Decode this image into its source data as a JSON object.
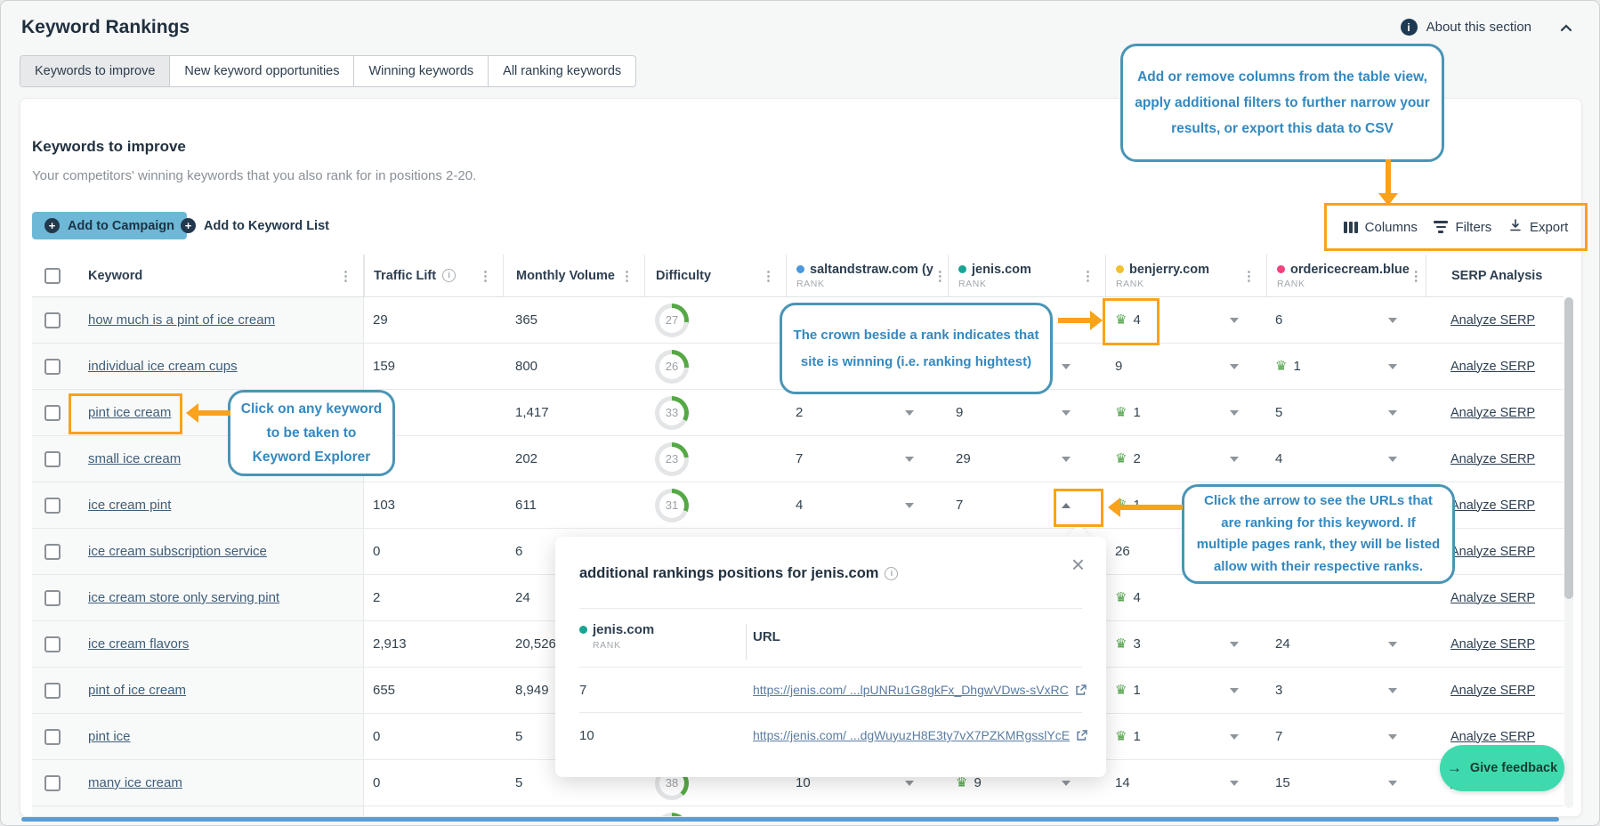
{
  "colors": {
    "accent_orange": "#F9A21B",
    "callout_text": "#3389C0",
    "callout_border": "#4A95B6",
    "green": "#55A945",
    "navy": "#2C3D4F",
    "campaign_btn": "#6DB8D6",
    "feedback_btn": "#3FD9AE"
  },
  "page": {
    "title": "Keyword Rankings"
  },
  "about": {
    "label": "About this section"
  },
  "tabs": [
    {
      "label": "Keywords to improve",
      "active": true
    },
    {
      "label": "New keyword opportunities",
      "active": false
    },
    {
      "label": "Winning keywords",
      "active": false
    },
    {
      "label": "All ranking keywords",
      "active": false
    }
  ],
  "section": {
    "title": "Keywords to improve",
    "subtitle": "Your competitors' winning keywords that you also rank for in positions 2-20."
  },
  "toolbar": {
    "add_to_campaign": "Add to Campaign",
    "add_to_keyword_list": "Add to Keyword List",
    "columns": "Columns",
    "filters": "Filters",
    "export": "Export"
  },
  "table": {
    "headers": {
      "keyword": "Keyword",
      "traffic_lift": "Traffic Lift",
      "monthly_volume": "Monthly Volume",
      "difficulty": "Difficulty",
      "serp": "SERP Analysis",
      "rank_sublabel": "RANK",
      "competitors": [
        {
          "name": "saltandstraw.com (y",
          "dot": "#4A97DD"
        },
        {
          "name": "jenis.com",
          "dot": "#17A493"
        },
        {
          "name": "benjerry.com",
          "dot": "#F2C12E"
        },
        {
          "name": "ordericecream.blue",
          "dot": "#F1437E"
        }
      ]
    },
    "analyze_serp_label": "Analyze SERP",
    "rows": [
      {
        "keyword": "how much is a pint of ice cream",
        "traffic_lift": "29",
        "monthly_volume": "365",
        "difficulty": 27,
        "ranks": [
          null,
          null,
          {
            "v": "4",
            "crown": true,
            "caret": "down"
          },
          {
            "v": "6",
            "caret": "down"
          }
        ]
      },
      {
        "keyword": "individual ice cream cups",
        "traffic_lift": "159",
        "monthly_volume": "800",
        "difficulty": 26,
        "ranks": [
          null,
          {
            "v": "",
            "caret": "down"
          },
          {
            "v": "9",
            "caret": "down"
          },
          {
            "v": "1",
            "crown": true,
            "caret": "down"
          }
        ]
      },
      {
        "keyword": "pint ice cream",
        "traffic_lift": null,
        "monthly_volume": "1,417",
        "difficulty": 33,
        "ranks": [
          {
            "v": "2",
            "caret": "down"
          },
          {
            "v": "9",
            "caret": "down"
          },
          {
            "v": "1",
            "crown": true,
            "caret": "down"
          },
          {
            "v": "5",
            "caret": "down"
          }
        ]
      },
      {
        "keyword": "small ice cream",
        "traffic_lift": null,
        "monthly_volume": "202",
        "difficulty": 23,
        "ranks": [
          {
            "v": "7",
            "caret": "down"
          },
          {
            "v": "29",
            "caret": "down"
          },
          {
            "v": "2",
            "crown": true,
            "caret": "down"
          },
          {
            "v": "4",
            "caret": "down"
          }
        ]
      },
      {
        "keyword": "ice cream pint",
        "traffic_lift": "103",
        "monthly_volume": "611",
        "difficulty": 31,
        "ranks": [
          {
            "v": "4",
            "caret": "down"
          },
          {
            "v": "7",
            "caret": "up"
          },
          {
            "v": "1",
            "crown": true
          },
          null
        ]
      },
      {
        "keyword": "ice cream subscription service",
        "traffic_lift": "0",
        "monthly_volume": "6",
        "difficulty": null,
        "ranks": [
          null,
          null,
          {
            "v": "26"
          },
          null
        ]
      },
      {
        "keyword": "ice cream store only serving pint",
        "traffic_lift": "2",
        "monthly_volume": "24",
        "difficulty": null,
        "ranks": [
          null,
          null,
          {
            "v": "4",
            "crown": true
          },
          null
        ]
      },
      {
        "keyword": "ice cream flavors",
        "traffic_lift": "2,913",
        "monthly_volume": "20,526",
        "difficulty": null,
        "ranks": [
          null,
          null,
          {
            "v": "3",
            "crown": true,
            "caret": "down"
          },
          {
            "v": "24",
            "caret": "down"
          }
        ]
      },
      {
        "keyword": "pint of ice cream",
        "traffic_lift": "655",
        "monthly_volume": "8,949",
        "difficulty": null,
        "ranks": [
          null,
          null,
          {
            "v": "1",
            "crown": true,
            "caret": "down"
          },
          {
            "v": "3",
            "caret": "down"
          }
        ]
      },
      {
        "keyword": "pint ice",
        "traffic_lift": "0",
        "monthly_volume": "5",
        "difficulty": null,
        "ranks": [
          null,
          null,
          {
            "v": "1",
            "crown": true,
            "caret": "down"
          },
          {
            "v": "7",
            "caret": "down"
          }
        ]
      },
      {
        "keyword": "many ice cream",
        "traffic_lift": "0",
        "monthly_volume": "5",
        "difficulty": 38,
        "ranks": [
          {
            "v": "10",
            "caret": "down"
          },
          {
            "v": "9",
            "crown": true,
            "caret": "down"
          },
          {
            "v": "14",
            "caret": "down"
          },
          {
            "v": "15",
            "caret": "down"
          }
        ]
      },
      {
        "partial": true,
        "partial_donut": true
      }
    ]
  },
  "callouts": {
    "columns_tip": {
      "lines": [
        "Add or remove columns from the table view,",
        "apply additional filters to further narrow your",
        "results, or export this data to CSV"
      ]
    },
    "crown_tip": {
      "lines": [
        "The crown beside a rank indicates that",
        "site is winning (i.e. ranking hightest)"
      ]
    },
    "keyword_tip": {
      "lines": [
        "Click on any keyword",
        "to be taken to",
        "Keyword Explorer"
      ]
    },
    "arrow_tip": {
      "lines": [
        "Click the arrow to see the URLs that",
        "are ranking for this keyword. If",
        "multiple pages rank, they will be listed",
        "allow with their respective ranks."
      ]
    }
  },
  "popover": {
    "title": "additional rankings positions for jenis.com",
    "site": "jenis.com",
    "site_dot": "#17A493",
    "rank_sublabel": "RANK",
    "url_header": "URL",
    "rows": [
      {
        "rank": "7",
        "url_prefix": "https://jenis.com/",
        "url_rest": "...lpUNRu1G8gkFx_DhgwVDws-sVxRC"
      },
      {
        "rank": "10",
        "url_prefix": "https://jenis.com/",
        "url_rest": "...dgWuyuzH8E3ty7vX7PZKMRgsslYcE"
      }
    ]
  },
  "feedback": {
    "label": "Give feedback"
  }
}
